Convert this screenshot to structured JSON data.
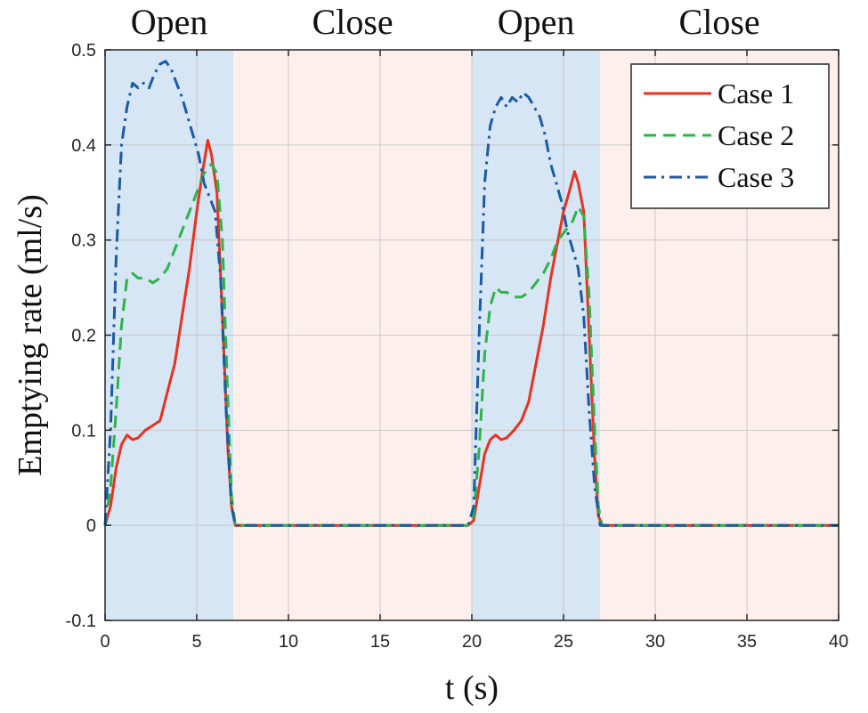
{
  "chart_data": {
    "type": "line",
    "xlabel": "t (s)",
    "ylabel": "Emptying rate (ml/s)",
    "xlim": [
      0,
      40
    ],
    "ylim": [
      -0.1,
      0.5
    ],
    "xticks": [
      0,
      5,
      10,
      15,
      20,
      25,
      30,
      35,
      40
    ],
    "yticks": [
      -0.1,
      0,
      0.1,
      0.2,
      0.3,
      0.4,
      0.5
    ],
    "grid": true,
    "legend_position": "top-right",
    "phases": [
      {
        "label": "Open",
        "start": 0,
        "end": 7,
        "color": "#d6e6f5"
      },
      {
        "label": "Close",
        "start": 7,
        "end": 20,
        "color": "#fdf0ec"
      },
      {
        "label": "Open",
        "start": 20,
        "end": 27,
        "color": "#d6e6f5"
      },
      {
        "label": "Close",
        "start": 27,
        "end": 40,
        "color": "#fdf0ec"
      }
    ],
    "series": [
      {
        "name": "Case 1",
        "color": "#e8321e",
        "style": "solid",
        "points": [
          [
            0,
            0
          ],
          [
            0.3,
            0.02
          ],
          [
            0.6,
            0.06
          ],
          [
            0.9,
            0.085
          ],
          [
            1.2,
            0.095
          ],
          [
            1.5,
            0.09
          ],
          [
            1.8,
            0.092
          ],
          [
            2.2,
            0.1
          ],
          [
            2.6,
            0.105
          ],
          [
            3.0,
            0.11
          ],
          [
            3.4,
            0.14
          ],
          [
            3.8,
            0.17
          ],
          [
            4.2,
            0.22
          ],
          [
            4.6,
            0.27
          ],
          [
            5.0,
            0.33
          ],
          [
            5.3,
            0.37
          ],
          [
            5.6,
            0.405
          ],
          [
            5.8,
            0.39
          ],
          [
            6.1,
            0.35
          ],
          [
            6.4,
            0.22
          ],
          [
            6.7,
            0.08
          ],
          [
            6.9,
            0.02
          ],
          [
            7.1,
            0
          ],
          [
            8,
            0
          ],
          [
            10,
            0
          ],
          [
            12,
            0
          ],
          [
            14,
            0
          ],
          [
            16,
            0
          ],
          [
            18,
            0
          ],
          [
            19.8,
            0
          ],
          [
            20.1,
            0.005
          ],
          [
            20.4,
            0.04
          ],
          [
            20.7,
            0.075
          ],
          [
            21.0,
            0.09
          ],
          [
            21.3,
            0.095
          ],
          [
            21.6,
            0.09
          ],
          [
            21.9,
            0.092
          ],
          [
            22.3,
            0.1
          ],
          [
            22.7,
            0.11
          ],
          [
            23.1,
            0.13
          ],
          [
            23.5,
            0.17
          ],
          [
            23.9,
            0.21
          ],
          [
            24.3,
            0.26
          ],
          [
            24.7,
            0.3
          ],
          [
            25.0,
            0.33
          ],
          [
            25.3,
            0.35
          ],
          [
            25.6,
            0.372
          ],
          [
            25.8,
            0.36
          ],
          [
            26.1,
            0.33
          ],
          [
            26.4,
            0.2
          ],
          [
            26.7,
            0.07
          ],
          [
            26.9,
            0.01
          ],
          [
            27.1,
            0
          ],
          [
            28,
            0
          ],
          [
            30,
            0
          ],
          [
            32,
            0
          ],
          [
            34,
            0
          ],
          [
            36,
            0
          ],
          [
            38,
            0
          ],
          [
            40,
            0
          ]
        ]
      },
      {
        "name": "Case 2",
        "color": "#2db34a",
        "style": "dashed",
        "points": [
          [
            0,
            0
          ],
          [
            0.3,
            0.04
          ],
          [
            0.6,
            0.12
          ],
          [
            0.9,
            0.21
          ],
          [
            1.2,
            0.26
          ],
          [
            1.5,
            0.265
          ],
          [
            1.8,
            0.26
          ],
          [
            2.2,
            0.26
          ],
          [
            2.6,
            0.255
          ],
          [
            3.0,
            0.26
          ],
          [
            3.4,
            0.27
          ],
          [
            3.8,
            0.29
          ],
          [
            4.2,
            0.31
          ],
          [
            4.6,
            0.33
          ],
          [
            5.0,
            0.35
          ],
          [
            5.4,
            0.37
          ],
          [
            5.8,
            0.38
          ],
          [
            6.1,
            0.37
          ],
          [
            6.4,
            0.3
          ],
          [
            6.7,
            0.13
          ],
          [
            6.9,
            0.03
          ],
          [
            7.1,
            0
          ],
          [
            8,
            0
          ],
          [
            10,
            0
          ],
          [
            12,
            0
          ],
          [
            14,
            0
          ],
          [
            16,
            0
          ],
          [
            18,
            0
          ],
          [
            19.8,
            0
          ],
          [
            20.1,
            0.01
          ],
          [
            20.4,
            0.08
          ],
          [
            20.7,
            0.18
          ],
          [
            21.0,
            0.23
          ],
          [
            21.3,
            0.25
          ],
          [
            21.6,
            0.245
          ],
          [
            21.9,
            0.245
          ],
          [
            22.3,
            0.24
          ],
          [
            22.7,
            0.24
          ],
          [
            23.1,
            0.245
          ],
          [
            23.5,
            0.255
          ],
          [
            23.9,
            0.265
          ],
          [
            24.3,
            0.28
          ],
          [
            24.7,
            0.3
          ],
          [
            25.1,
            0.31
          ],
          [
            25.5,
            0.32
          ],
          [
            25.8,
            0.335
          ],
          [
            26.1,
            0.325
          ],
          [
            26.4,
            0.24
          ],
          [
            26.7,
            0.1
          ],
          [
            26.9,
            0.02
          ],
          [
            27.1,
            0
          ],
          [
            28,
            0
          ],
          [
            30,
            0
          ],
          [
            32,
            0
          ],
          [
            34,
            0
          ],
          [
            36,
            0
          ],
          [
            38,
            0
          ],
          [
            40,
            0
          ]
        ]
      },
      {
        "name": "Case 3",
        "color": "#1c5aa3",
        "style": "dashdot",
        "points": [
          [
            0,
            0
          ],
          [
            0.3,
            0.1
          ],
          [
            0.6,
            0.28
          ],
          [
            0.9,
            0.4
          ],
          [
            1.2,
            0.44
          ],
          [
            1.5,
            0.465
          ],
          [
            1.8,
            0.46
          ],
          [
            2.1,
            0.465
          ],
          [
            2.4,
            0.46
          ],
          [
            2.7,
            0.475
          ],
          [
            3.0,
            0.485
          ],
          [
            3.3,
            0.488
          ],
          [
            3.6,
            0.48
          ],
          [
            3.9,
            0.465
          ],
          [
            4.2,
            0.45
          ],
          [
            4.5,
            0.43
          ],
          [
            4.8,
            0.41
          ],
          [
            5.1,
            0.39
          ],
          [
            5.4,
            0.36
          ],
          [
            5.7,
            0.345
          ],
          [
            6.0,
            0.33
          ],
          [
            6.3,
            0.26
          ],
          [
            6.6,
            0.12
          ],
          [
            6.9,
            0.02
          ],
          [
            7.1,
            0
          ],
          [
            8,
            0
          ],
          [
            10,
            0
          ],
          [
            12,
            0
          ],
          [
            14,
            0
          ],
          [
            16,
            0
          ],
          [
            18,
            0
          ],
          [
            19.8,
            0
          ],
          [
            20.1,
            0.02
          ],
          [
            20.4,
            0.2
          ],
          [
            20.7,
            0.36
          ],
          [
            21.0,
            0.42
          ],
          [
            21.3,
            0.44
          ],
          [
            21.6,
            0.45
          ],
          [
            21.9,
            0.44
          ],
          [
            22.2,
            0.45
          ],
          [
            22.5,
            0.445
          ],
          [
            22.8,
            0.455
          ],
          [
            23.1,
            0.45
          ],
          [
            23.4,
            0.44
          ],
          [
            23.7,
            0.43
          ],
          [
            24.0,
            0.41
          ],
          [
            24.3,
            0.38
          ],
          [
            24.6,
            0.36
          ],
          [
            24.9,
            0.34
          ],
          [
            25.2,
            0.31
          ],
          [
            25.5,
            0.29
          ],
          [
            25.8,
            0.27
          ],
          [
            26.1,
            0.22
          ],
          [
            26.4,
            0.12
          ],
          [
            26.7,
            0.04
          ],
          [
            27.0,
            0
          ],
          [
            28,
            0
          ],
          [
            30,
            0
          ],
          [
            32,
            0
          ],
          [
            34,
            0
          ],
          [
            36,
            0
          ],
          [
            38,
            0
          ],
          [
            40,
            0
          ]
        ]
      }
    ]
  }
}
